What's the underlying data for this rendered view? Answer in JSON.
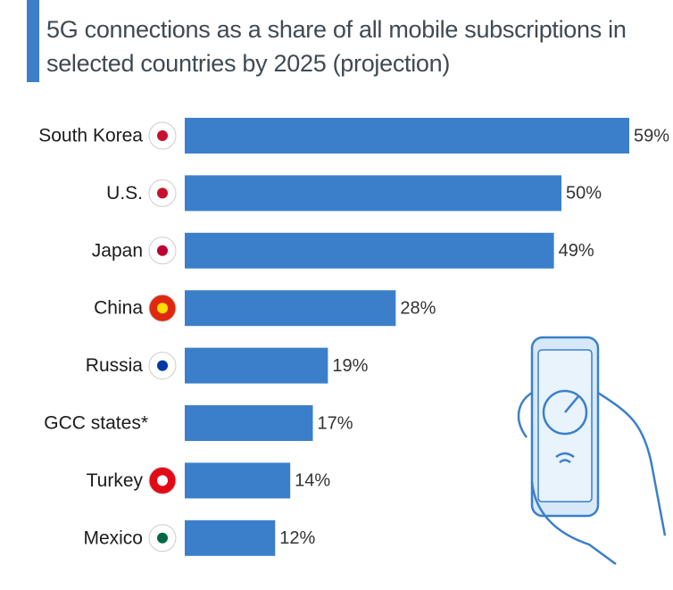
{
  "chart_data": {
    "type": "bar",
    "orientation": "horizontal",
    "title": "5G connections as a share of all mobile subscriptions in selected countries by 2025 (projection)",
    "categories": [
      "South Korea",
      "U.S.",
      "Japan",
      "China",
      "Russia",
      "GCC states*",
      "Turkey",
      "Mexico"
    ],
    "values": [
      59,
      50,
      49,
      28,
      19,
      17,
      14,
      12
    ],
    "value_labels": [
      "59%",
      "50%",
      "49%",
      "28%",
      "19%",
      "17%",
      "14%",
      "12%"
    ],
    "color": "#3b7fca"
  }
}
